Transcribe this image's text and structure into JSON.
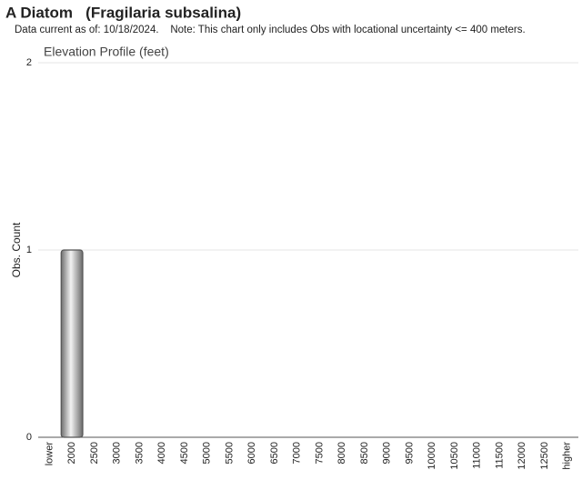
{
  "chart_data": {
    "type": "bar",
    "title": "A Diatom   (Fragilaria subsalina)",
    "subtitle": "Data current as of: 10/18/2024.    Note: This chart only includes Obs with locational uncertainty <= 400 meters.",
    "chart_title": "Elevation Profile (feet)",
    "y_label": "Obs. Count",
    "categories": [
      "lower",
      "2000",
      "2500",
      "3000",
      "3500",
      "4000",
      "4500",
      "5000",
      "5500",
      "6000",
      "6500",
      "7000",
      "7500",
      "8000",
      "8500",
      "9000",
      "9500",
      "10000",
      "10500",
      "11000",
      "11500",
      "12000",
      "12500",
      "higher"
    ],
    "values": [
      0,
      1,
      0,
      0,
      0,
      0,
      0,
      0,
      0,
      0,
      0,
      0,
      0,
      0,
      0,
      0,
      0,
      0,
      0,
      0,
      0,
      0,
      0,
      0
    ],
    "color": "#9a9a9a",
    "ylim": [
      0,
      2
    ],
    "yticks": [
      0,
      1,
      2
    ],
    "grid": true
  }
}
